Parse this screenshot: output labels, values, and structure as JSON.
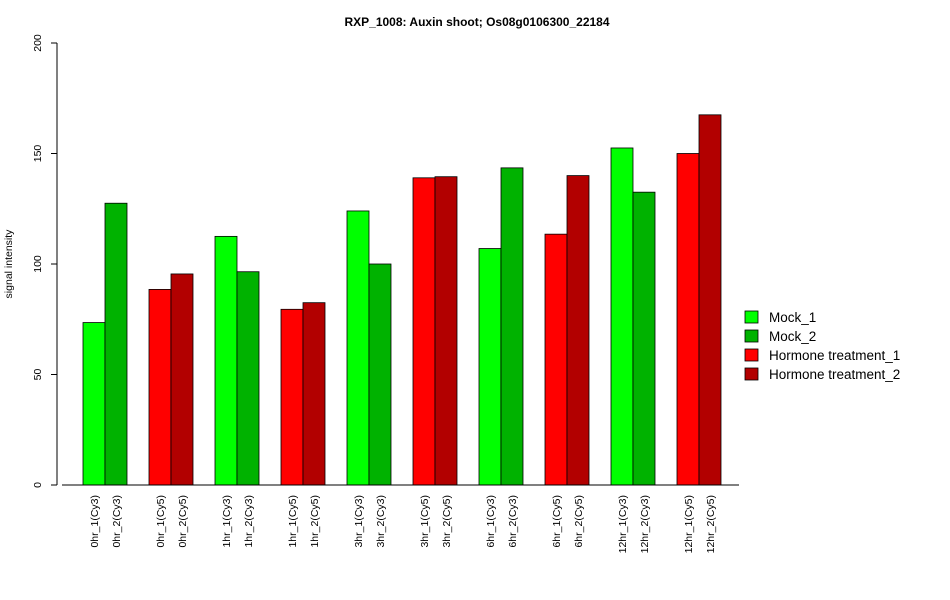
{
  "chart_data": {
    "type": "bar",
    "title": "RXP_1008: Auxin shoot; Os08g0106300_22184",
    "ylabel": "signal intensity",
    "xlabel": "",
    "ylim": [
      0,
      200
    ],
    "yticks": [
      0,
      50,
      100,
      150,
      200
    ],
    "grid": false,
    "legend_position": "right",
    "series": [
      {
        "name": "Mock_1",
        "color": "#00ff00"
      },
      {
        "name": "Mock_2",
        "color": "#00b200"
      },
      {
        "name": "Hormone treatment_1",
        "color": "#ff0000"
      },
      {
        "name": "Hormone treatment_2",
        "color": "#b20000"
      }
    ],
    "bars": [
      {
        "label": "0hr_1(Cy3)",
        "value": 73.5,
        "series": 0
      },
      {
        "label": "0hr_2(Cy3)",
        "value": 127.5,
        "series": 1
      },
      {
        "label": "0hr_1(Cy5)",
        "value": 88.5,
        "series": 2
      },
      {
        "label": "0hr_2(Cy5)",
        "value": 95.5,
        "series": 3
      },
      {
        "label": "1hr_1(Cy3)",
        "value": 112.5,
        "series": 0
      },
      {
        "label": "1hr_2(Cy3)",
        "value": 96.5,
        "series": 1
      },
      {
        "label": "1hr_1(Cy5)",
        "value": 79.5,
        "series": 2
      },
      {
        "label": "1hr_2(Cy5)",
        "value": 82.5,
        "series": 3
      },
      {
        "label": "3hr_1(Cy3)",
        "value": 124.0,
        "series": 0
      },
      {
        "label": "3hr_2(Cy3)",
        "value": 100.0,
        "series": 1
      },
      {
        "label": "3hr_1(Cy5)",
        "value": 139.0,
        "series": 2
      },
      {
        "label": "3hr_2(Cy5)",
        "value": 139.5,
        "series": 3
      },
      {
        "label": "6hr_1(Cy3)",
        "value": 107.0,
        "series": 0
      },
      {
        "label": "6hr_2(Cy3)",
        "value": 143.5,
        "series": 1
      },
      {
        "label": "6hr_1(Cy5)",
        "value": 113.5,
        "series": 2
      },
      {
        "label": "6hr_2(Cy5)",
        "value": 140.0,
        "series": 3
      },
      {
        "label": "12hr_1(Cy3)",
        "value": 152.5,
        "series": 0
      },
      {
        "label": "12hr_2(Cy3)",
        "value": 132.5,
        "series": 1
      },
      {
        "label": "12hr_1(Cy5)",
        "value": 150.0,
        "series": 2
      },
      {
        "label": "12hr_2(Cy5)",
        "value": 167.5,
        "series": 3
      }
    ]
  }
}
